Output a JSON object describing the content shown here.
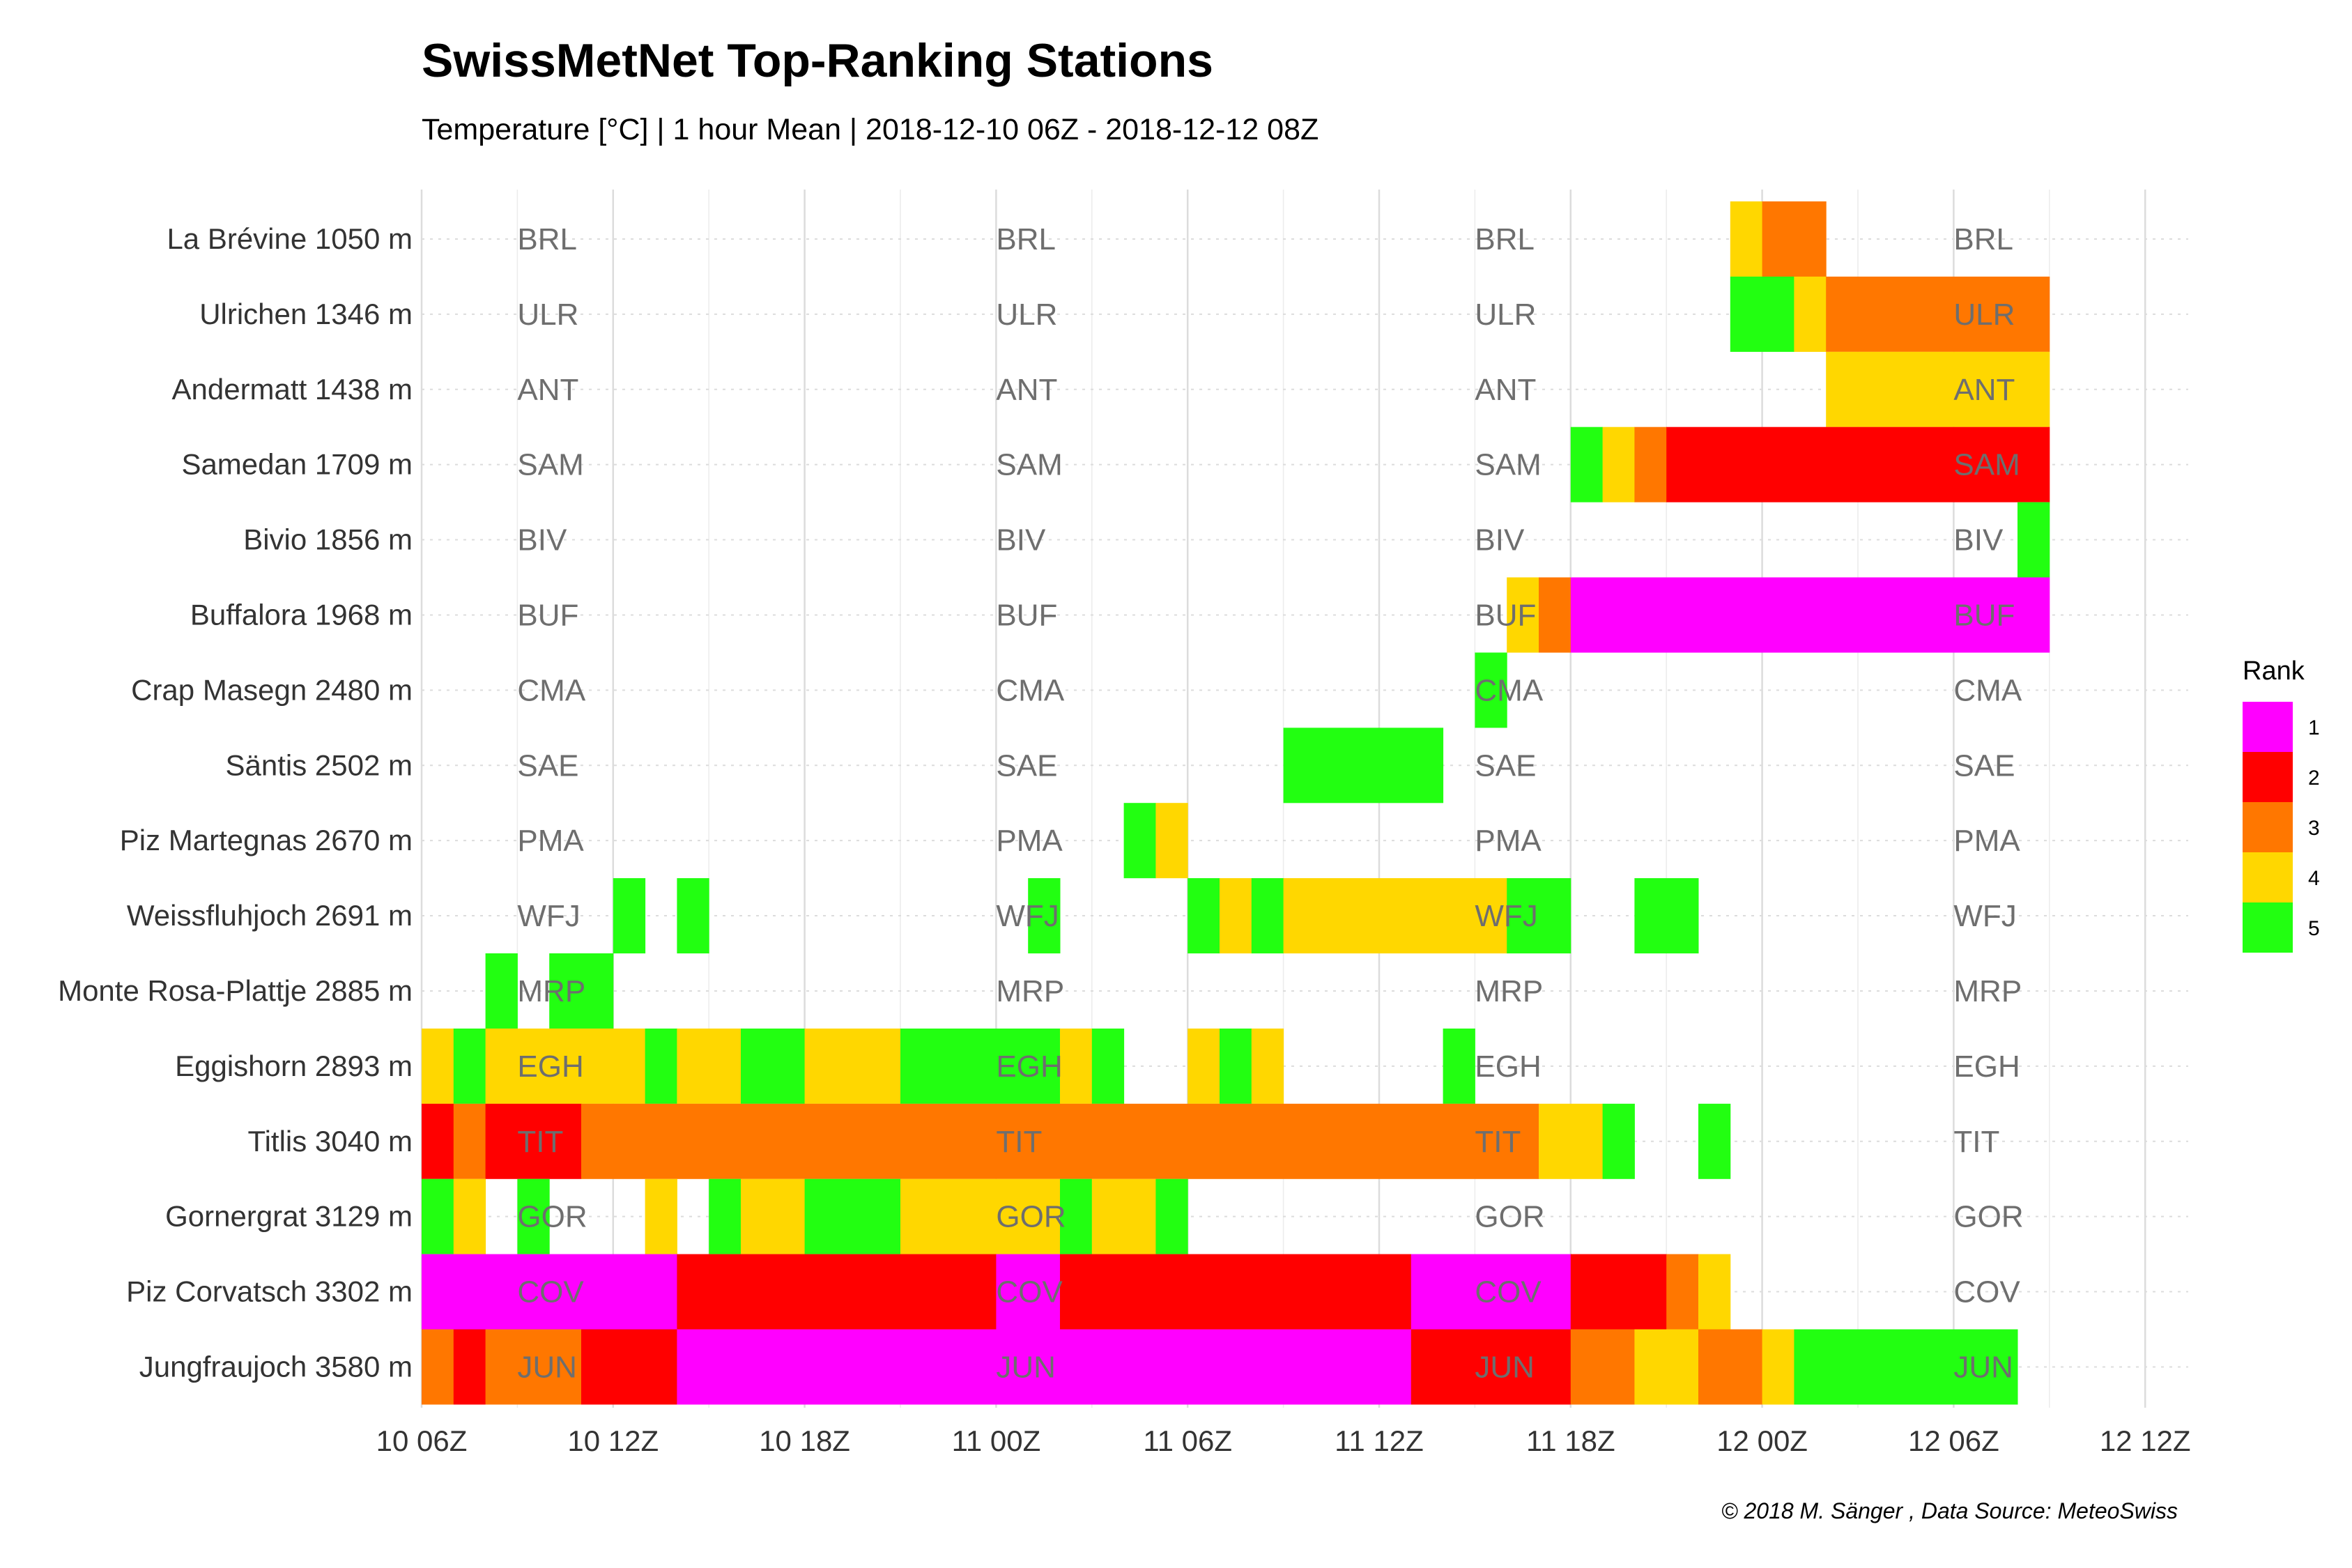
{
  "header": {
    "title": "SwissMetNet Top-Ranking Stations",
    "subtitle": "Temperature [°C] | 1 hour Mean | 2018-12-10 06Z - 2018-12-12 08Z"
  },
  "caption": "© 2018 M. Sänger , Data Source: MeteoSwiss",
  "colors": {
    "rank_1": "#FF00FF",
    "rank_2": "#FF0000",
    "rank_3": "#FF7700",
    "rank_4": "#FFD700",
    "rank_5": "#22FF11",
    "grid": "#dcdcdc",
    "code_text": "#6e6e6e"
  },
  "chart_data": {
    "type": "heatmap",
    "x_unit": "hours since 10 06Z",
    "xlim": [
      0,
      54.5
    ],
    "x_ticks": [
      {
        "at": 0,
        "label": "10 06Z"
      },
      {
        "at": 6,
        "label": "10 12Z"
      },
      {
        "at": 12,
        "label": "10 18Z"
      },
      {
        "at": 18,
        "label": "11 00Z"
      },
      {
        "at": 24,
        "label": "11 06Z"
      },
      {
        "at": 30,
        "label": "11 12Z"
      },
      {
        "at": 36,
        "label": "11 18Z"
      },
      {
        "at": 42,
        "label": "12 00Z"
      },
      {
        "at": 48,
        "label": "12 06Z"
      },
      {
        "at": 54,
        "label": "12 12Z"
      }
    ],
    "code_label_positions": [
      3,
      18,
      33,
      48
    ],
    "grid": true,
    "legend": {
      "title": "Rank",
      "position": "right",
      "entries": [
        {
          "rank": 1,
          "label": "1"
        },
        {
          "rank": 2,
          "label": "2"
        },
        {
          "rank": 3,
          "label": "3"
        },
        {
          "rank": 4,
          "label": "4"
        },
        {
          "rank": 5,
          "label": "5"
        }
      ]
    },
    "stations": [
      {
        "name": "La Brévine 1050 m",
        "code": "BRL",
        "segments": [
          [
            41,
            1,
            4
          ],
          [
            42,
            2,
            3
          ]
        ]
      },
      {
        "name": "Ulrichen 1346 m",
        "code": "ULR",
        "segments": [
          [
            41,
            2,
            5
          ],
          [
            43,
            1,
            4
          ],
          [
            44,
            7,
            3
          ]
        ]
      },
      {
        "name": "Andermatt 1438 m",
        "code": "ANT",
        "segments": [
          [
            44,
            7,
            4
          ]
        ]
      },
      {
        "name": "Samedan 1709 m",
        "code": "SAM",
        "segments": [
          [
            36,
            1,
            5
          ],
          [
            37,
            1,
            4
          ],
          [
            38,
            1,
            3
          ],
          [
            39,
            12,
            2
          ]
        ]
      },
      {
        "name": "Bivio 1856 m",
        "code": "BIV",
        "segments": [
          [
            50,
            1,
            5
          ]
        ]
      },
      {
        "name": "Buffalora 1968 m",
        "code": "BUF",
        "segments": [
          [
            34,
            1,
            4
          ],
          [
            35,
            1,
            3
          ],
          [
            36,
            15,
            1
          ]
        ]
      },
      {
        "name": "Crap Masegn 2480 m",
        "code": "CMA",
        "segments": [
          [
            33,
            1,
            5
          ]
        ]
      },
      {
        "name": "Säntis 2502 m",
        "code": "SAE",
        "segments": [
          [
            27,
            5,
            5
          ]
        ]
      },
      {
        "name": "Piz Martegnas 2670 m",
        "code": "PMA",
        "segments": [
          [
            22,
            1,
            5
          ],
          [
            23,
            1,
            4
          ]
        ]
      },
      {
        "name": "Weissfluhjoch 2691 m",
        "code": "WFJ",
        "segments": [
          [
            6,
            1,
            5
          ],
          [
            8,
            1,
            5
          ],
          [
            19,
            1,
            5
          ],
          [
            24,
            1,
            5
          ],
          [
            25,
            1,
            4
          ],
          [
            26,
            1,
            5
          ],
          [
            27,
            7,
            4
          ],
          [
            34,
            2,
            5
          ],
          [
            38,
            2,
            5
          ]
        ]
      },
      {
        "name": "Monte Rosa-Plattje 2885 m",
        "code": "MRP",
        "segments": [
          [
            2,
            1,
            5
          ],
          [
            4,
            2,
            5
          ]
        ]
      },
      {
        "name": "Eggishorn 2893 m",
        "code": "EGH",
        "segments": [
          [
            0,
            1,
            4
          ],
          [
            1,
            1,
            5
          ],
          [
            2,
            5,
            4
          ],
          [
            7,
            1,
            5
          ],
          [
            8,
            2,
            4
          ],
          [
            10,
            2,
            5
          ],
          [
            12,
            3,
            4
          ],
          [
            15,
            5,
            5
          ],
          [
            20,
            1,
            4
          ],
          [
            21,
            1,
            5
          ],
          [
            24,
            1,
            4
          ],
          [
            25,
            1,
            5
          ],
          [
            26,
            1,
            4
          ],
          [
            32,
            1,
            5
          ]
        ]
      },
      {
        "name": "Titlis 3040 m",
        "code": "TIT",
        "segments": [
          [
            0,
            1,
            2
          ],
          [
            1,
            1,
            3
          ],
          [
            2,
            3,
            2
          ],
          [
            5,
            30,
            3
          ],
          [
            35,
            2,
            4
          ],
          [
            37,
            1,
            5
          ],
          [
            40,
            1,
            5
          ]
        ]
      },
      {
        "name": "Gornergrat 3129 m",
        "code": "GOR",
        "segments": [
          [
            0,
            1,
            5
          ],
          [
            1,
            1,
            4
          ],
          [
            3,
            1,
            5
          ],
          [
            7,
            1,
            4
          ],
          [
            9,
            1,
            5
          ],
          [
            10,
            2,
            4
          ],
          [
            12,
            3,
            5
          ],
          [
            15,
            5,
            4
          ],
          [
            20,
            1,
            5
          ],
          [
            21,
            2,
            4
          ],
          [
            23,
            1,
            5
          ]
        ]
      },
      {
        "name": "Piz Corvatsch 3302 m",
        "code": "COV",
        "segments": [
          [
            0,
            8,
            1
          ],
          [
            8,
            10,
            2
          ],
          [
            18,
            2,
            1
          ],
          [
            20,
            11,
            2
          ],
          [
            31,
            5,
            1
          ],
          [
            36,
            3,
            2
          ],
          [
            39,
            1,
            3
          ],
          [
            40,
            1,
            4
          ]
        ]
      },
      {
        "name": "Jungfraujoch 3580 m",
        "code": "JUN",
        "segments": [
          [
            0,
            1,
            3
          ],
          [
            1,
            1,
            2
          ],
          [
            2,
            3,
            3
          ],
          [
            5,
            3,
            2
          ],
          [
            8,
            10,
            1
          ],
          [
            18,
            2,
            1
          ],
          [
            20,
            11,
            1
          ],
          [
            31,
            5,
            2
          ],
          [
            36,
            2,
            3
          ],
          [
            38,
            2,
            4
          ],
          [
            40,
            2,
            3
          ],
          [
            42,
            1,
            4
          ],
          [
            43,
            7,
            5
          ]
        ]
      }
    ]
  }
}
